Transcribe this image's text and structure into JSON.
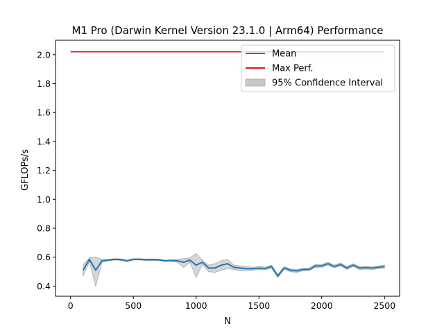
{
  "chart_data": {
    "type": "line",
    "title": "M1 Pro (Darwin Kernel Version 23.1.0 | Arm64) Performance",
    "xlabel": "N",
    "ylabel": "GFLOPs/s",
    "xlim": [
      -120,
      2620
    ],
    "ylim": [
      0.33,
      2.1
    ],
    "xticks": [
      0,
      500,
      1000,
      1500,
      2000,
      2500
    ],
    "xtick_labels": [
      "0",
      "500",
      "1000",
      "1500",
      "2000",
      "2500"
    ],
    "yticks": [
      0.4,
      0.6,
      0.8,
      1.0,
      1.2,
      1.4,
      1.6,
      1.8,
      2.0
    ],
    "ytick_labels": [
      "0.4",
      "0.6",
      "0.8",
      "1.0",
      "1.2",
      "1.4",
      "1.6",
      "1.8",
      "2.0"
    ],
    "grid": false,
    "legend_position": "top-right",
    "legend": [
      "Mean",
      "Max Perf.",
      "95% Confidence Interval"
    ],
    "colors": {
      "mean": "#1f77b4",
      "max": "#e01010",
      "ci": "#c8c8c8"
    },
    "series": [
      {
        "name": "Mean",
        "x": [
          100,
          150,
          200,
          250,
          300,
          350,
          400,
          450,
          500,
          550,
          600,
          650,
          700,
          750,
          800,
          850,
          900,
          950,
          1000,
          1050,
          1100,
          1150,
          1200,
          1250,
          1300,
          1350,
          1400,
          1450,
          1500,
          1550,
          1600,
          1650,
          1700,
          1750,
          1800,
          1850,
          1900,
          1950,
          2000,
          2050,
          2100,
          2150,
          2200,
          2250,
          2300,
          2350,
          2400,
          2450,
          2500
        ],
        "y": [
          0.51,
          0.585,
          0.51,
          0.575,
          0.58,
          0.585,
          0.583,
          0.575,
          0.585,
          0.585,
          0.582,
          0.583,
          0.582,
          0.575,
          0.577,
          0.575,
          0.565,
          0.58,
          0.545,
          0.565,
          0.525,
          0.525,
          0.545,
          0.555,
          0.53,
          0.525,
          0.52,
          0.52,
          0.525,
          0.522,
          0.535,
          0.47,
          0.525,
          0.51,
          0.505,
          0.515,
          0.515,
          0.54,
          0.54,
          0.555,
          0.535,
          0.55,
          0.525,
          0.545,
          0.525,
          0.528,
          0.525,
          0.53,
          0.535
        ]
      },
      {
        "name": "Max Perf.",
        "x": [
          0,
          2500
        ],
        "y": [
          2.02,
          2.02
        ]
      }
    ],
    "confidence_interval": {
      "name": "95% Confidence Interval",
      "x": [
        100,
        150,
        200,
        250,
        300,
        350,
        400,
        450,
        500,
        550,
        600,
        650,
        700,
        750,
        800,
        850,
        900,
        950,
        1000,
        1050,
        1100,
        1150,
        1200,
        1250,
        1300,
        1350,
        1400,
        1450,
        1500,
        1550,
        1600,
        1650,
        1700,
        1750,
        1800,
        1850,
        1900,
        1950,
        2000,
        2050,
        2100,
        2150,
        2200,
        2250,
        2300,
        2350,
        2400,
        2450,
        2500
      ],
      "lower": [
        0.47,
        0.57,
        0.4,
        0.565,
        0.575,
        0.58,
        0.578,
        0.57,
        0.58,
        0.58,
        0.577,
        0.578,
        0.577,
        0.57,
        0.572,
        0.565,
        0.53,
        0.565,
        0.46,
        0.55,
        0.5,
        0.495,
        0.51,
        0.52,
        0.515,
        0.505,
        0.505,
        0.51,
        0.515,
        0.512,
        0.525,
        0.46,
        0.515,
        0.5,
        0.495,
        0.505,
        0.505,
        0.53,
        0.53,
        0.545,
        0.525,
        0.54,
        0.515,
        0.535,
        0.515,
        0.518,
        0.515,
        0.52,
        0.525
      ],
      "upper": [
        0.55,
        0.595,
        0.6,
        0.585,
        0.585,
        0.59,
        0.588,
        0.58,
        0.59,
        0.59,
        0.587,
        0.588,
        0.587,
        0.58,
        0.582,
        0.585,
        0.59,
        0.595,
        0.625,
        0.58,
        0.545,
        0.555,
        0.575,
        0.585,
        0.545,
        0.54,
        0.535,
        0.53,
        0.535,
        0.532,
        0.545,
        0.48,
        0.535,
        0.52,
        0.515,
        0.525,
        0.525,
        0.55,
        0.55,
        0.565,
        0.545,
        0.56,
        0.535,
        0.555,
        0.535,
        0.538,
        0.535,
        0.54,
        0.545
      ]
    }
  }
}
